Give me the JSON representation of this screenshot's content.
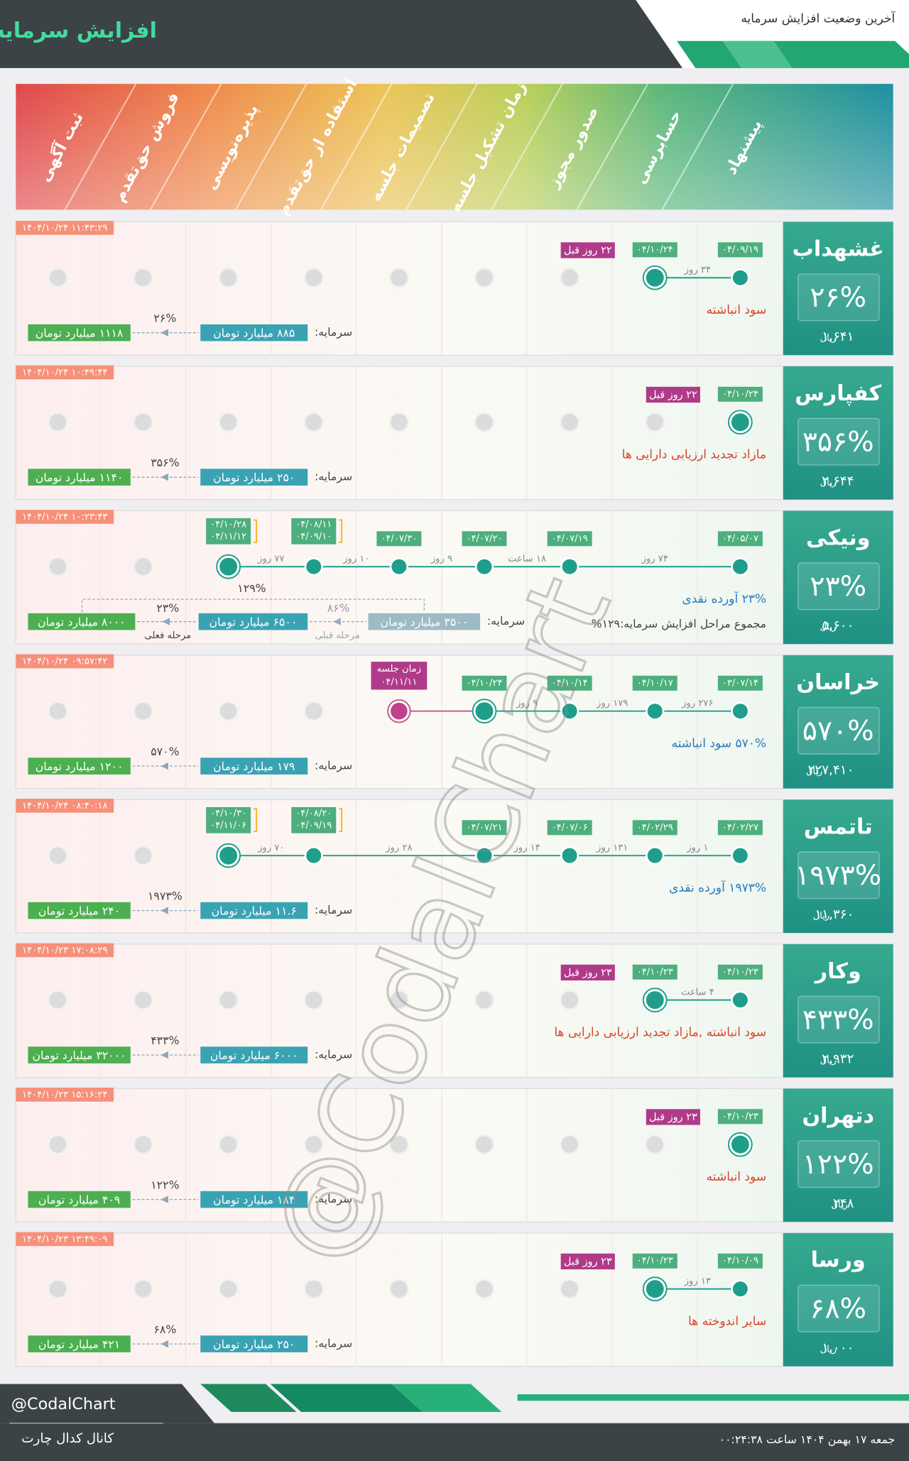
{
  "header": {
    "title": "افزایش سرمایه",
    "subtitle": "آخرین وضعیت افزایش سرمایه"
  },
  "stages": [
    "ثبت آگهی",
    "فروش حق‌تقدم",
    "پذیره‌نویسی",
    "استفاده از حق‌تقدم",
    "تصمیمات جلسه",
    "زمان تشکیل جلسه",
    "صدور مجوز",
    "حسابرسی",
    "پیشنهاد"
  ],
  "price_unit": "ریال",
  "capital_label": "سرمایه:",
  "rows": [
    {
      "symbol": "غشهداب",
      "percent": "۲۶%",
      "price": "۱,۶۴۱",
      "timestamp": "۱۴۰۴/۱۰/۲۴ ۱۱:۴۳:۲۹",
      "dates": [
        null,
        null,
        null,
        null,
        null,
        null,
        null,
        "۰۴/۱۰/۲۴",
        "۰۴/۰۹/۱۹"
      ],
      "gaps": [
        null,
        null,
        null,
        null,
        null,
        null,
        null,
        "۳۴ روز",
        null
      ],
      "badge": "۲۲ روز قبل",
      "description": "سود انباشته",
      "description_color": "#d9452b",
      "capital": {
        "from": "۸۸۵ میلیارد تومان",
        "pct": "۲۶%",
        "to": "۱۱۱۸ میلیارد تومان"
      }
    },
    {
      "symbol": "کفپارس",
      "percent": "۳۵۶%",
      "price": "۲,۶۴۴",
      "timestamp": "۱۴۰۴/۱۰/۲۴ ۱۰:۴۹:۴۴",
      "dates": [
        null,
        null,
        null,
        null,
        null,
        null,
        null,
        null,
        "۰۴/۱۰/۲۴"
      ],
      "badge": "۲۲ روز قبل",
      "description": "مازاد تجدید ارزیابی دارایی ها",
      "description_color": "#d9452b",
      "capital": {
        "from": "۲۵۰ میلیارد تومان",
        "pct": "۳۵۶%",
        "to": "۱۱۴۰ میلیارد تومان"
      }
    },
    {
      "symbol": "ونیکی",
      "percent": "۲۳%",
      "price": "۵,۶۰۰",
      "timestamp": "۱۴۰۴/۱۰/۲۴ ۱۰:۲۳:۴۳",
      "dates": [
        null,
        null,
        [
          "۰۴/۱۰/۲۸",
          "۰۴/۱۱/۱۲"
        ],
        [
          "۰۴/۰۸/۱۱",
          "۰۴/۰۹/۱۰"
        ],
        "۰۴/۰۷/۳۰",
        "۰۴/۰۷/۲۰",
        "۰۴/۰۷/۱۹",
        null,
        "۰۴/۰۵/۰۷"
      ],
      "gaps": [
        null,
        null,
        "۷۷ روز",
        "۱۰ روز",
        "۹ روز",
        "۱۸ ساعت",
        "۷۴ روز",
        null,
        null
      ],
      "description": "۲۳% آورده نقدی",
      "description_color": "#2a7bbf",
      "total_text": "مجموع مراحل افزایش سرمایه:۱۲۹%",
      "capital": {
        "prev": "۳۵۰۰ میلیارد تومان",
        "prev_label": "مرحله قبلی",
        "prev_pct": "۸۶%",
        "from": "۶۵۰۰ میلیارد تومان",
        "pct": "۲۳%",
        "to": "۸۰۰۰ میلیارد تومان",
        "to_label": "مرحله فعلی",
        "total": "۱۲۹%"
      }
    },
    {
      "symbol": "خراسان",
      "percent": "۵۷۰%",
      "price": "۲۲۷,۴۱۰",
      "timestamp": "۱۴۰۴/۱۰/۲۴ ۰۹:۵۷:۴۲",
      "dates": [
        null,
        null,
        null,
        null,
        {
          "label": "زمان جلسه",
          "date": "۰۴/۱۱/۱۱"
        },
        "۰۴/۱۰/۲۴",
        "۰۴/۱۰/۱۴",
        "۰۴/۱۰/۱۷",
        "۰۳/۰۷/۱۴"
      ],
      "gaps": [
        null,
        null,
        null,
        null,
        null,
        "۹ روز",
        "۱۷۹ روز",
        "۲۷۶ روز",
        null
      ],
      "description": "۵۷۰% سود انباشته",
      "description_color": "#2a7bbf",
      "capital": {
        "from": "۱۷۹ میلیارد تومان",
        "pct": "۵۷۰%",
        "to": "۱۲۰۰ میلیارد تومان"
      }
    },
    {
      "symbol": "تاتمس",
      "percent": "۱۹۷۳%",
      "price": "۱۱,۳۶۰",
      "timestamp": "۱۴۰۴/۱۰/۲۴ ۰۸:۴۰:۱۸",
      "dates": [
        null,
        null,
        [
          "۰۴/۱۰/۳۰",
          "۰۴/۱۱/۰۶"
        ],
        [
          "۰۴/۰۸/۲۰",
          "۰۴/۰۹/۱۹"
        ],
        null,
        "۰۴/۰۷/۲۱",
        "۰۴/۰۷/۰۶",
        "۰۴/۰۲/۲۹",
        "۰۴/۰۲/۲۷"
      ],
      "gaps": [
        null,
        null,
        "۷۰ روز",
        "۲۸ روز",
        null,
        "۱۴ روز",
        "۱۳۱ روز",
        "۱ روز",
        null
      ],
      "description": "۱۹۷۳% آورده نقدی",
      "description_color": "#2a7bbf",
      "capital": {
        "from": "۱۱.۶ میلیارد تومان",
        "pct": "۱۹۷۳%",
        "to": "۲۴۰ میلیارد تومان"
      }
    },
    {
      "symbol": "وکار",
      "percent": "۴۳۳%",
      "price": "۲,۹۳۲",
      "timestamp": "۱۴۰۴/۱۰/۲۳ ۱۷:۰۸:۲۹",
      "dates": [
        null,
        null,
        null,
        null,
        null,
        null,
        null,
        "۰۴/۱۰/۲۳",
        "۰۴/۱۰/۲۳"
      ],
      "gaps": [
        null,
        null,
        null,
        null,
        null,
        null,
        null,
        "۴ ساعت",
        null
      ],
      "badge": "۲۳ روز قبل",
      "description": "سود انباشته ,مازاد تجدید ارزیابی دارایی ها",
      "description_color": "#d9452b",
      "capital": {
        "from": "۶۰۰۰ میلیارد تومان",
        "pct": "۴۳۳%",
        "to": "۳۲۰۰۰ میلیارد تومان"
      }
    },
    {
      "symbol": "دتهران",
      "percent": "۱۲۲%",
      "price": "۲۴۸",
      "timestamp": "۱۴۰۴/۱۰/۲۳ ۱۵:۱۶:۲۴",
      "dates": [
        null,
        null,
        null,
        null,
        null,
        null,
        null,
        null,
        "۰۴/۱۰/۲۳"
      ],
      "badge": "۲۳ روز قبل",
      "description": "سود انباشته",
      "description_color": "#d9452b",
      "capital": {
        "from": "۱۸۴ میلیارد تومان",
        "pct": "۱۲۲%",
        "to": "۴۰۹ میلیارد تومان"
      }
    },
    {
      "symbol": "ورسا",
      "percent": "۶۸%",
      "price": "۱,۰۰۰",
      "timestamp": "۱۴۰۴/۱۰/۲۳ ۱۳:۴۹:۰۹",
      "dates": [
        null,
        null,
        null,
        null,
        null,
        null,
        null,
        "۰۴/۱۰/۲۳",
        "۰۴/۱۰/۰۹"
      ],
      "gaps": [
        null,
        null,
        null,
        null,
        null,
        null,
        null,
        "۱۳ روز",
        null
      ],
      "badge": "۲۳ روز قبل",
      "description": "سایر اندوخته ها",
      "description_color": "#d9452b",
      "capital": {
        "from": "۲۵۰ میلیارد تومان",
        "pct": "۶۸%",
        "to": "۴۲۱ میلیارد تومان"
      }
    }
  ],
  "footer": {
    "handle": "@CodalChart",
    "channel": "کانال کدال چارت",
    "date": "جمعه ۱۷ بهمن ۱۴۰۴ ساعت ۰۰:۲۴:۳۸"
  }
}
